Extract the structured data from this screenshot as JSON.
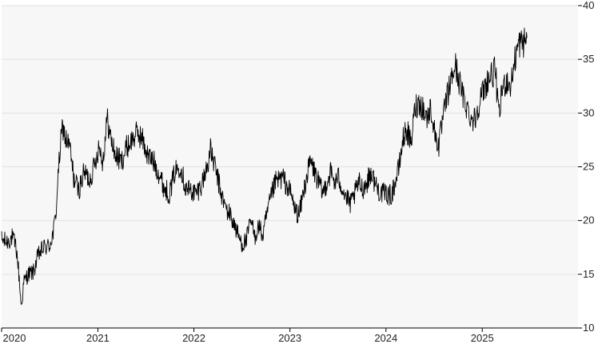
{
  "chart_data": {
    "type": "line",
    "title": "",
    "xlabel": "",
    "ylabel": "",
    "x_range": [
      "2020-01-01",
      "2025-12-31"
    ],
    "ylim": [
      10,
      40
    ],
    "y_ticks": [
      10,
      15,
      20,
      25,
      30,
      35,
      40
    ],
    "x_ticks": [
      {
        "label": "2020",
        "date": "2020-01-01"
      },
      {
        "label": "2021",
        "date": "2021-01-01"
      },
      {
        "label": "2022",
        "date": "2022-01-01"
      },
      {
        "label": "2023",
        "date": "2023-01-01"
      },
      {
        "label": "2024",
        "date": "2024-01-01"
      },
      {
        "label": "2025",
        "date": "2025-01-01"
      }
    ],
    "y_axis_position": "right",
    "grid": "horizontal",
    "legend": "none",
    "colors": {
      "plot_background": "#f7f7f7",
      "gridline": "#e2e2e2",
      "line": "#000000",
      "axis": "#000000"
    },
    "series": [
      {
        "values": [
          [
            "2020-01-01",
            18.2
          ],
          [
            "2020-01-20",
            18.0
          ],
          [
            "2020-02-10",
            18.4
          ],
          [
            "2020-02-25",
            17.6
          ],
          [
            "2020-03-05",
            15.5
          ],
          [
            "2020-03-16",
            12.0
          ],
          [
            "2020-03-25",
            14.2
          ],
          [
            "2020-04-10",
            15.0
          ],
          [
            "2020-05-01",
            15.2
          ],
          [
            "2020-05-20",
            16.8
          ],
          [
            "2020-06-10",
            17.5
          ],
          [
            "2020-06-30",
            17.6
          ],
          [
            "2020-07-15",
            18.8
          ],
          [
            "2020-07-25",
            20.5
          ],
          [
            "2020-08-01",
            23.5
          ],
          [
            "2020-08-10",
            26.5
          ],
          [
            "2020-08-20",
            28.8
          ],
          [
            "2020-09-01",
            27.5
          ],
          [
            "2020-09-15",
            27.0
          ],
          [
            "2020-10-01",
            24.0
          ],
          [
            "2020-10-20",
            22.8
          ],
          [
            "2020-11-10",
            24.5
          ],
          [
            "2020-12-01",
            23.8
          ],
          [
            "2020-12-20",
            25.2
          ],
          [
            "2021-01-05",
            27.0
          ],
          [
            "2021-01-20",
            25.5
          ],
          [
            "2021-02-05",
            29.5
          ],
          [
            "2021-02-20",
            27.5
          ],
          [
            "2021-03-10",
            26.0
          ],
          [
            "2021-04-01",
            25.5
          ],
          [
            "2021-04-20",
            26.8
          ],
          [
            "2021-05-10",
            27.5
          ],
          [
            "2021-06-01",
            28.2
          ],
          [
            "2021-06-20",
            27.5
          ],
          [
            "2021-07-10",
            26.0
          ],
          [
            "2021-08-01",
            25.5
          ],
          [
            "2021-08-20",
            24.5
          ],
          [
            "2021-09-10",
            23.0
          ],
          [
            "2021-10-01",
            22.5
          ],
          [
            "2021-10-20",
            24.5
          ],
          [
            "2021-11-10",
            25.2
          ],
          [
            "2021-12-01",
            23.0
          ],
          [
            "2021-12-20",
            22.8
          ],
          [
            "2022-01-10",
            22.5
          ],
          [
            "2022-02-01",
            23.5
          ],
          [
            "2022-02-20",
            25.0
          ],
          [
            "2022-03-05",
            26.5
          ],
          [
            "2022-03-20",
            25.2
          ],
          [
            "2022-04-05",
            23.5
          ],
          [
            "2022-04-20",
            22.0
          ],
          [
            "2022-05-05",
            21.0
          ],
          [
            "2022-05-20",
            20.5
          ],
          [
            "2022-06-05",
            19.5
          ],
          [
            "2022-06-20",
            18.5
          ],
          [
            "2022-07-05",
            17.8
          ],
          [
            "2022-07-20",
            18.2
          ],
          [
            "2022-08-05",
            20.0
          ],
          [
            "2022-08-20",
            18.5
          ],
          [
            "2022-09-05",
            19.5
          ],
          [
            "2022-09-20",
            18.5
          ],
          [
            "2022-10-05",
            20.5
          ],
          [
            "2022-10-20",
            22.0
          ],
          [
            "2022-11-05",
            23.5
          ],
          [
            "2022-11-20",
            23.8
          ],
          [
            "2022-12-05",
            24.0
          ],
          [
            "2022-12-20",
            23.2
          ],
          [
            "2023-01-05",
            22.5
          ],
          [
            "2023-01-20",
            21.0
          ],
          [
            "2023-02-05",
            20.5
          ],
          [
            "2023-02-20",
            22.5
          ],
          [
            "2023-03-05",
            24.0
          ],
          [
            "2023-03-20",
            25.5
          ],
          [
            "2023-04-05",
            24.5
          ],
          [
            "2023-04-20",
            23.5
          ],
          [
            "2023-05-05",
            22.5
          ],
          [
            "2023-05-20",
            23.5
          ],
          [
            "2023-06-05",
            24.5
          ],
          [
            "2023-06-20",
            23.5
          ],
          [
            "2023-07-05",
            24.0
          ],
          [
            "2023-07-20",
            23.0
          ],
          [
            "2023-08-05",
            22.0
          ],
          [
            "2023-08-20",
            21.5
          ],
          [
            "2023-09-05",
            22.5
          ],
          [
            "2023-09-20",
            23.5
          ],
          [
            "2023-10-05",
            23.0
          ],
          [
            "2023-10-20",
            23.5
          ],
          [
            "2023-11-05",
            24.5
          ],
          [
            "2023-11-20",
            23.5
          ],
          [
            "2023-12-05",
            22.8
          ],
          [
            "2023-12-20",
            22.5
          ],
          [
            "2024-01-05",
            22.5
          ],
          [
            "2024-01-20",
            22.3
          ],
          [
            "2024-02-05",
            23.5
          ],
          [
            "2024-02-20",
            25.0
          ],
          [
            "2024-03-05",
            27.5
          ],
          [
            "2024-03-20",
            28.5
          ],
          [
            "2024-04-05",
            27.0
          ],
          [
            "2024-04-20",
            30.5
          ],
          [
            "2024-05-05",
            31.0
          ],
          [
            "2024-05-20",
            30.5
          ],
          [
            "2024-06-05",
            29.5
          ],
          [
            "2024-06-20",
            30.5
          ],
          [
            "2024-07-05",
            28.0
          ],
          [
            "2024-07-20",
            27.0
          ],
          [
            "2024-08-05",
            29.5
          ],
          [
            "2024-08-20",
            31.5
          ],
          [
            "2024-09-05",
            33.0
          ],
          [
            "2024-09-20",
            34.5
          ],
          [
            "2024-10-05",
            33.0
          ],
          [
            "2024-10-20",
            31.5
          ],
          [
            "2024-11-05",
            30.5
          ],
          [
            "2024-11-20",
            29.5
          ],
          [
            "2024-12-05",
            29.5
          ],
          [
            "2024-12-20",
            31.0
          ],
          [
            "2025-01-05",
            32.0
          ],
          [
            "2025-01-20",
            33.0
          ],
          [
            "2025-02-05",
            33.5
          ],
          [
            "2025-02-20",
            34.0
          ],
          [
            "2025-03-05",
            29.5
          ],
          [
            "2025-03-20",
            32.5
          ],
          [
            "2025-04-05",
            33.0
          ],
          [
            "2025-04-20",
            32.5
          ],
          [
            "2025-05-05",
            35.0
          ],
          [
            "2025-05-20",
            36.5
          ],
          [
            "2025-06-05",
            36.5
          ],
          [
            "2025-06-20",
            37.0
          ]
        ]
      }
    ]
  }
}
